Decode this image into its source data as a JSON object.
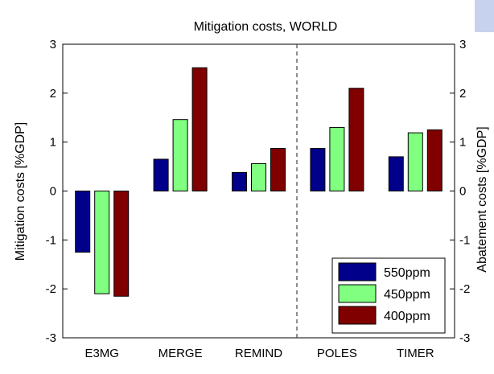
{
  "chart_data": {
    "type": "bar",
    "title": "Mitigation costs, WORLD",
    "ylabel": "Mitigation costs [%GDP]",
    "ylabel_right": "Abatement costs [%GDP]",
    "categories": [
      "E3MG",
      "MERGE",
      "REMIND",
      "POLES",
      "TIMER"
    ],
    "series": [
      {
        "name": "550ppm",
        "color": "#00008b",
        "values": [
          -1.25,
          0.65,
          0.38,
          0.87,
          0.7
        ]
      },
      {
        "name": "450ppm",
        "color": "#80ff80",
        "values": [
          -2.1,
          1.46,
          0.56,
          1.3,
          1.19
        ]
      },
      {
        "name": "400ppm",
        "color": "#800000",
        "values": [
          -2.15,
          2.52,
          0.87,
          2.1,
          1.25
        ]
      }
    ],
    "ylim": [
      -3,
      3
    ],
    "yticks": [
      -3,
      -2,
      -1,
      0,
      1,
      2,
      3
    ],
    "ytick_labels": [
      "-3",
      "-2",
      "-1",
      "0",
      "1",
      "2",
      "3"
    ],
    "divider_after_category": 2,
    "divider_style": "dashed",
    "legend_position": "bottom-right",
    "grid": false
  },
  "colors": {
    "axis": "#000000",
    "divider": "#444444",
    "accent_sliver": "#c7d3ee"
  }
}
